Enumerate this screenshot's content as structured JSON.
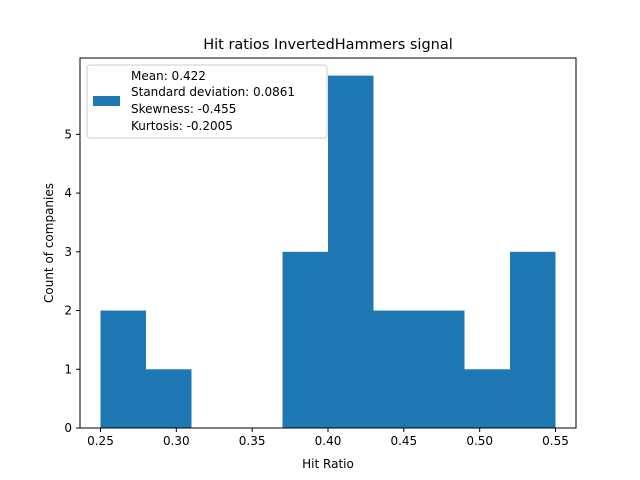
{
  "chart_data": {
    "type": "bar",
    "title": "Hit ratios InvertedHammers signal",
    "xlabel": "Hit Ratio",
    "ylabel": "Count of companies",
    "xlim": [
      0.2365,
      0.5635
    ],
    "ylim": [
      0,
      6.3
    ],
    "bins": [
      {
        "start": 0.25,
        "end": 0.28,
        "count": 2
      },
      {
        "start": 0.28,
        "end": 0.31,
        "count": 1
      },
      {
        "start": 0.31,
        "end": 0.34,
        "count": 0
      },
      {
        "start": 0.34,
        "end": 0.37,
        "count": 0
      },
      {
        "start": 0.37,
        "end": 0.4,
        "count": 3
      },
      {
        "start": 0.4,
        "end": 0.43,
        "count": 6
      },
      {
        "start": 0.43,
        "end": 0.46,
        "count": 2
      },
      {
        "start": 0.46,
        "end": 0.49,
        "count": 2
      },
      {
        "start": 0.49,
        "end": 0.52,
        "count": 1
      },
      {
        "start": 0.52,
        "end": 0.55,
        "count": 3
      }
    ],
    "xticks": [
      {
        "value": 0.25,
        "label": "0.25"
      },
      {
        "value": 0.3,
        "label": "0.30"
      },
      {
        "value": 0.35,
        "label": "0.35"
      },
      {
        "value": 0.4,
        "label": "0.40"
      },
      {
        "value": 0.45,
        "label": "0.45"
      },
      {
        "value": 0.5,
        "label": "0.50"
      },
      {
        "value": 0.55,
        "label": "0.55"
      }
    ],
    "yticks": [
      {
        "value": 0,
        "label": "0"
      },
      {
        "value": 1,
        "label": "1"
      },
      {
        "value": 2,
        "label": "2"
      },
      {
        "value": 3,
        "label": "3"
      },
      {
        "value": 4,
        "label": "4"
      },
      {
        "value": 5,
        "label": "5"
      }
    ],
    "bar_color": "#1f77b4",
    "grid": false,
    "legend": {
      "placement": "top-left",
      "lines": [
        "Mean: 0.422",
        "Standard deviation: 0.0861",
        "Skewness: -0.455",
        "Kurtosis: -0.2005"
      ]
    }
  }
}
